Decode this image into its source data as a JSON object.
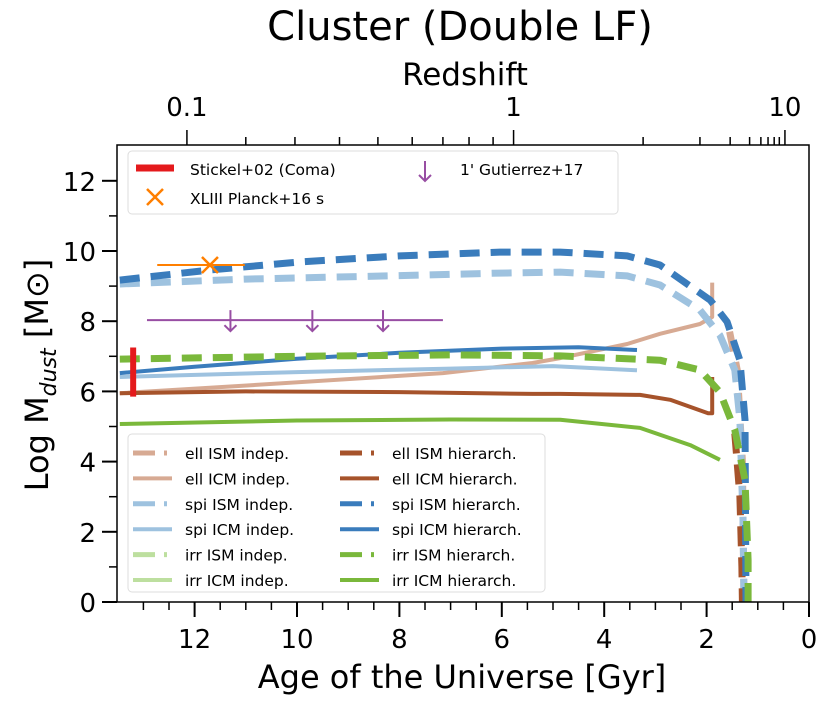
{
  "chart_data": {
    "type": "line",
    "title": "Cluster (Double LF)",
    "xlabel": "Age of the Universe [Gyr]",
    "ylabel_main": "Log M",
    "ylabel_sub": "dust",
    "ylabel_unit_open": " [M",
    "ylabel_unit_sym": "⊙",
    "ylabel_unit_close": "]",
    "top_xlabel": "Redshift",
    "xlim": [
      13.46,
      0
    ],
    "ylim": [
      0,
      13
    ],
    "xticks": [
      12,
      10,
      8,
      6,
      4,
      2,
      0
    ],
    "xtick_labels": [
      "12",
      "10",
      "8",
      "6",
      "4",
      "2",
      "0"
    ],
    "yticks": [
      0,
      2,
      4,
      6,
      8,
      10,
      12
    ],
    "ytick_labels": [
      "0",
      "2",
      "4",
      "6",
      "8",
      "10",
      "12"
    ],
    "redshift_ticks": [
      {
        "z": 0.1,
        "age": 12.15,
        "label": "0.1"
      },
      {
        "z": 0.2,
        "age": 11.0,
        "label": ""
      },
      {
        "z": 0.3,
        "age": 10.04,
        "label": ""
      },
      {
        "z": 0.4,
        "age": 9.17,
        "label": ""
      },
      {
        "z": 0.5,
        "age": 8.42,
        "label": ""
      },
      {
        "z": 0.6,
        "age": 7.75,
        "label": ""
      },
      {
        "z": 0.7,
        "age": 7.15,
        "label": ""
      },
      {
        "z": 0.8,
        "age": 6.64,
        "label": ""
      },
      {
        "z": 0.9,
        "age": 6.17,
        "label": ""
      },
      {
        "z": 1,
        "age": 5.77,
        "label": "1"
      },
      {
        "z": 2,
        "age": 3.24,
        "label": ""
      },
      {
        "z": 3,
        "age": 2.13,
        "label": ""
      },
      {
        "z": 4,
        "age": 1.54,
        "label": ""
      },
      {
        "z": 5,
        "age": 1.16,
        "label": ""
      },
      {
        "z": 6,
        "age": 0.94,
        "label": ""
      },
      {
        "z": 7,
        "age": 0.8,
        "label": ""
      },
      {
        "z": 8,
        "age": 0.68,
        "label": ""
      },
      {
        "z": 9,
        "age": 0.58,
        "label": ""
      },
      {
        "z": 10,
        "age": 0.47,
        "label": "10"
      }
    ],
    "series": [
      {
        "name": "ell ISM indep.",
        "color": "#d7aa93",
        "dashed": true,
        "points": [
          [
            1.55,
            7.7
          ],
          [
            1.4,
            6.6
          ],
          [
            1.3,
            4.0
          ],
          [
            1.27,
            0
          ]
        ]
      },
      {
        "name": "ell ICM indep.",
        "color": "#d7aa93",
        "dashed": false,
        "points": [
          [
            13.46,
            5.95
          ],
          [
            10.86,
            6.18
          ],
          [
            7.15,
            6.52
          ],
          [
            5.4,
            6.81
          ],
          [
            4.86,
            6.95
          ],
          [
            3.55,
            7.35
          ],
          [
            2.91,
            7.64
          ],
          [
            2.13,
            7.92
          ],
          [
            1.89,
            8.12
          ],
          [
            1.89,
            9.1
          ]
        ]
      },
      {
        "name": "spi ISM indep.",
        "color": "#9ec2df",
        "dashed": true,
        "points": [
          [
            13.46,
            9.06
          ],
          [
            11,
            9.2
          ],
          [
            8,
            9.3
          ],
          [
            6.04,
            9.37
          ],
          [
            4.86,
            9.4
          ],
          [
            3.55,
            9.29
          ],
          [
            2.91,
            9.03
          ],
          [
            2.13,
            8.32
          ],
          [
            1.74,
            7.6
          ],
          [
            1.45,
            6.61
          ],
          [
            1.35,
            5.19
          ],
          [
            1.29,
            2.34
          ],
          [
            1.27,
            0
          ]
        ]
      },
      {
        "name": "spi ICM indep.",
        "color": "#9ec2df",
        "dashed": false,
        "points": [
          [
            13.46,
            6.41
          ],
          [
            10,
            6.55
          ],
          [
            7,
            6.65
          ],
          [
            5,
            6.72
          ],
          [
            3.36,
            6.6
          ]
        ]
      },
      {
        "name": "irr ISM indep.",
        "color": "#bddf9f",
        "dashed": true,
        "points": []
      },
      {
        "name": "irr ICM indep.",
        "color": "#bddf9f",
        "dashed": false,
        "points": []
      },
      {
        "name": "ell ISM hierarch.",
        "color": "#a6532b",
        "dashed": true,
        "points": [
          [
            1.45,
            4.8
          ],
          [
            1.35,
            3.0
          ],
          [
            1.31,
            1.0
          ],
          [
            1.3,
            0
          ]
        ]
      },
      {
        "name": "ell ICM hierarch.",
        "color": "#a6532b",
        "dashed": false,
        "points": [
          [
            13.46,
            5.95
          ],
          [
            11,
            6.0
          ],
          [
            8,
            5.98
          ],
          [
            5.4,
            5.93
          ],
          [
            4.86,
            5.93
          ],
          [
            3.3,
            5.9
          ],
          [
            2.71,
            5.76
          ],
          [
            1.97,
            5.38
          ],
          [
            1.89,
            5.38
          ],
          [
            1.89,
            6.41
          ]
        ]
      },
      {
        "name": "spi ISM hierarch.",
        "color": "#3a7cbc",
        "dashed": true,
        "points": [
          [
            13.46,
            9.17
          ],
          [
            11.7,
            9.46
          ],
          [
            9.94,
            9.69
          ],
          [
            7.99,
            9.86
          ],
          [
            6.04,
            9.97
          ],
          [
            4.86,
            9.97
          ],
          [
            3.55,
            9.86
          ],
          [
            2.91,
            9.6
          ],
          [
            1.93,
            8.6
          ],
          [
            1.6,
            7.98
          ],
          [
            1.35,
            6.89
          ],
          [
            1.25,
            5.19
          ],
          [
            1.23,
            0
          ]
        ]
      },
      {
        "name": "spi ICM hierarch.",
        "color": "#3a7cbc",
        "dashed": false,
        "points": [
          [
            13.46,
            6.52
          ],
          [
            12,
            6.7
          ],
          [
            10,
            6.93
          ],
          [
            8,
            7.1
          ],
          [
            6,
            7.22
          ],
          [
            4.5,
            7.26
          ],
          [
            3.36,
            7.18
          ]
        ]
      },
      {
        "name": "irr ISM hierarch.",
        "color": "#7ab83b",
        "dashed": true,
        "points": [
          [
            13.46,
            6.92
          ],
          [
            10,
            7.0
          ],
          [
            7,
            7.04
          ],
          [
            4.86,
            7.01
          ],
          [
            2.91,
            6.89
          ],
          [
            2.13,
            6.61
          ],
          [
            1.74,
            5.98
          ],
          [
            1.45,
            4.9
          ],
          [
            1.25,
            3.48
          ],
          [
            1.19,
            1.2
          ],
          [
            1.19,
            0
          ]
        ]
      },
      {
        "name": "irr ICM hierarch.",
        "color": "#7ab83b",
        "dashed": false,
        "points": [
          [
            13.46,
            5.07
          ],
          [
            10,
            5.17
          ],
          [
            7,
            5.2
          ],
          [
            4.86,
            5.19
          ],
          [
            3.3,
            4.96
          ],
          [
            2.32,
            4.47
          ],
          [
            1.74,
            4.05
          ]
        ]
      }
    ],
    "observations": {
      "stickel": {
        "name": "Stickel+02 (Coma)",
        "color": "#e41a1c",
        "age": 13.2,
        "ymin": 5.85,
        "ymax": 7.25
      },
      "planck": {
        "name": "XLIII Planck+16 s",
        "color": "#ff7f00",
        "age": 11.7,
        "y": 9.6,
        "age_err": [
          12.73,
          11.02
        ]
      },
      "gutierrez": {
        "name": "1' Gutierrez+17",
        "color": "#984ea3",
        "y": 8.03,
        "age_range": [
          12.93,
          7.15
        ],
        "arrow_ages": [
          11.3,
          9.7,
          8.32
        ]
      }
    },
    "legend_placement": [
      "top-left",
      "lower-left"
    ]
  }
}
